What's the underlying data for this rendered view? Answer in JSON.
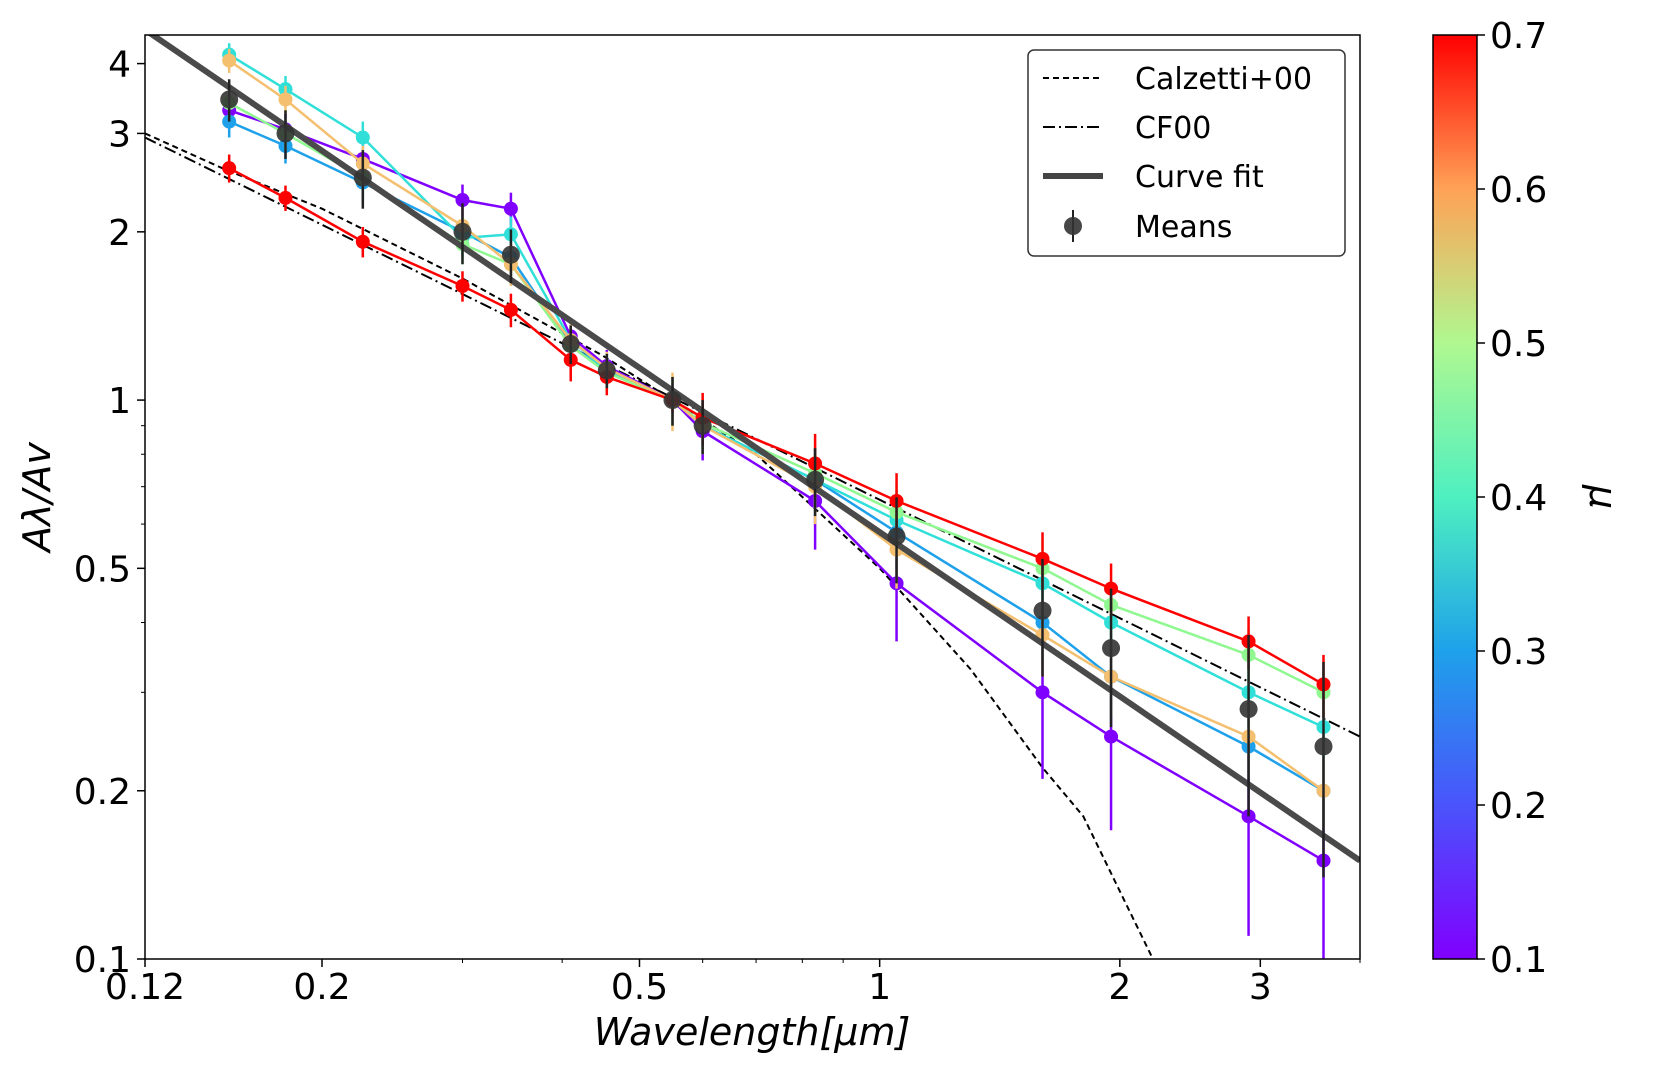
{
  "chart_data": {
    "type": "line",
    "xlabel": "Wavelength[μm]",
    "ylabel": "Aλ/Av",
    "xscale": "log",
    "yscale": "log",
    "xlim": [
      0.12,
      4.0
    ],
    "ylim": [
      0.1,
      4.5
    ],
    "x_ticks": [
      {
        "value": 0.12,
        "label": "0.12"
      },
      {
        "value": 0.2,
        "label": "0.2"
      },
      {
        "value": 0.5,
        "label": "0.5"
      },
      {
        "value": 1,
        "label": "1"
      },
      {
        "value": 2,
        "label": "2"
      },
      {
        "value": 3,
        "label": "3"
      }
    ],
    "y_ticks": [
      {
        "value": 0.1,
        "label": "0.1"
      },
      {
        "value": 0.2,
        "label": "0.2"
      },
      {
        "value": 0.5,
        "label": "0.5"
      },
      {
        "value": 1,
        "label": "1"
      },
      {
        "value": 2,
        "label": "2"
      },
      {
        "value": 3,
        "label": "3"
      },
      {
        "value": 4,
        "label": "4"
      }
    ],
    "grid": false,
    "legend_position": "top-right",
    "legend": [
      {
        "label": "Calzetti+00",
        "style": "dashed"
      },
      {
        "label": "CF00",
        "style": "dashdot"
      },
      {
        "label": "Curve fit",
        "style": "thick-solid"
      },
      {
        "label": "Means",
        "style": "marker-errorbar"
      }
    ],
    "colorbar": {
      "label": "μ",
      "range": [
        0.1,
        0.7
      ],
      "ticks": [
        "0.1",
        "0.2",
        "0.3",
        "0.4",
        "0.5",
        "0.6",
        "0.7"
      ],
      "colormap": "rainbow"
    },
    "x": [
      0.153,
      0.18,
      0.225,
      0.3,
      0.345,
      0.41,
      0.455,
      0.55,
      0.6,
      0.83,
      1.05,
      1.6,
      1.95,
      2.9,
      3.6
    ],
    "series": [
      {
        "mu": 0.1,
        "color": "#8000ff",
        "values": [
          3.3,
          3.05,
          2.7,
          2.28,
          2.2,
          1.3,
          1.15,
          1.0,
          0.88,
          0.66,
          0.47,
          0.3,
          0.25,
          0.18,
          0.15
        ],
        "errors": [
          0.2,
          0.2,
          0.2,
          0.15,
          0.15,
          0.1,
          0.08,
          0.1,
          0.1,
          0.12,
          0.1,
          0.09,
          0.08,
          0.07,
          0.05
        ]
      },
      {
        "mu": 0.25,
        "color": "#1ea1ea",
        "values": [
          3.15,
          2.85,
          2.45,
          2.0,
          1.8,
          1.25,
          1.13,
          1.0,
          0.9,
          0.72,
          0.58,
          0.4,
          0.32,
          0.24,
          0.2
        ],
        "errors": [
          0.2,
          0.2,
          0.2,
          0.15,
          0.15,
          0.1,
          0.08,
          0.1,
          0.1,
          0.1,
          0.08,
          0.06,
          0.05,
          0.04,
          0.03
        ]
      },
      {
        "mu": 0.32,
        "color": "#30e0d8",
        "values": [
          4.15,
          3.6,
          2.95,
          1.95,
          1.98,
          1.28,
          1.13,
          1.0,
          0.9,
          0.72,
          0.61,
          0.47,
          0.4,
          0.3,
          0.26
        ],
        "errors": [
          0.2,
          0.2,
          0.2,
          0.15,
          0.15,
          0.1,
          0.08,
          0.1,
          0.1,
          0.1,
          0.08,
          0.06,
          0.05,
          0.04,
          0.03
        ]
      },
      {
        "mu": 0.4,
        "color": "#90f890",
        "values": [
          3.4,
          3.0,
          2.5,
          1.9,
          1.75,
          1.25,
          1.12,
          1.0,
          0.91,
          0.74,
          0.63,
          0.5,
          0.43,
          0.35,
          0.3
        ],
        "errors": [
          0.2,
          0.2,
          0.2,
          0.15,
          0.15,
          0.1,
          0.08,
          0.1,
          0.1,
          0.1,
          0.08,
          0.06,
          0.05,
          0.04,
          0.03
        ]
      },
      {
        "mu": 0.55,
        "color": "#f4c070",
        "values": [
          4.05,
          3.45,
          2.65,
          2.05,
          1.75,
          1.28,
          1.14,
          1.0,
          0.9,
          0.7,
          0.54,
          0.38,
          0.32,
          0.25,
          0.2
        ],
        "errors": [
          0.2,
          0.2,
          0.2,
          0.15,
          0.15,
          0.1,
          0.08,
          0.12,
          0.1,
          0.1,
          0.08,
          0.06,
          0.05,
          0.04,
          0.03
        ]
      },
      {
        "mu": 0.7,
        "color": "#ff0000",
        "values": [
          2.6,
          2.3,
          1.92,
          1.6,
          1.45,
          1.18,
          1.1,
          1.0,
          0.93,
          0.77,
          0.66,
          0.52,
          0.46,
          0.37,
          0.31
        ],
        "errors": [
          0.15,
          0.12,
          0.12,
          0.1,
          0.1,
          0.1,
          0.08,
          0.05,
          0.1,
          0.1,
          0.08,
          0.06,
          0.05,
          0.04,
          0.04
        ]
      }
    ],
    "means": {
      "color": "#333333",
      "values": [
        3.45,
        3.0,
        2.5,
        2.0,
        1.82,
        1.26,
        1.13,
        1.0,
        0.9,
        0.72,
        0.57,
        0.42,
        0.36,
        0.28,
        0.24
      ],
      "errors": [
        0.3,
        0.3,
        0.3,
        0.25,
        0.2,
        0.1,
        0.08,
        0.1,
        0.1,
        0.1,
        0.1,
        0.1,
        0.1,
        0.1,
        0.1
      ]
    },
    "calzetti": {
      "x": [
        0.12,
        0.15,
        0.2,
        0.3,
        0.45,
        0.55,
        0.7,
        1.0,
        1.3,
        1.6,
        1.8,
        2.2
      ],
      "values": [
        3.0,
        2.6,
        2.2,
        1.65,
        1.2,
        1.0,
        0.8,
        0.5,
        0.33,
        0.22,
        0.18,
        0.1
      ]
    },
    "cf00": {
      "x": [
        0.12,
        4.0
      ],
      "values": [
        2.95,
        0.25
      ]
    },
    "curve_fit": {
      "x": [
        0.12,
        4.0
      ],
      "values": [
        4.6,
        0.15
      ]
    }
  }
}
